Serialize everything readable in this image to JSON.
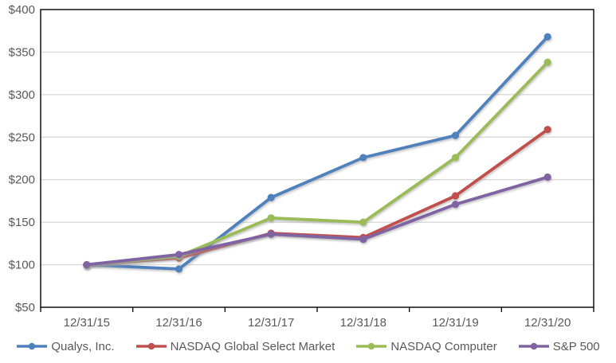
{
  "chart_data": {
    "type": "line",
    "title": "",
    "xlabel": "",
    "ylabel": "",
    "categories": [
      "12/31/15",
      "12/31/16",
      "12/31/17",
      "12/31/18",
      "12/31/19",
      "12/31/20"
    ],
    "series": [
      {
        "name": "Qualys, Inc.",
        "color": "#4F81BD",
        "marker": "circle",
        "values": [
          100,
          95,
          179,
          226,
          252,
          368
        ]
      },
      {
        "name": "NASDAQ Global Select Market",
        "color": "#C0504D",
        "marker": "circle",
        "values": [
          100,
          108,
          137,
          132,
          181,
          259
        ]
      },
      {
        "name": "NASDAQ Computer",
        "color": "#9BBB59",
        "marker": "circle",
        "values": [
          100,
          110,
          155,
          150,
          226,
          338
        ]
      },
      {
        "name": "S&P 500",
        "color": "#8064A2",
        "marker": "circle",
        "values": [
          100,
          112,
          136,
          130,
          171,
          203
        ]
      }
    ],
    "ylim": [
      50,
      400
    ],
    "y_tick_values": [
      50,
      100,
      150,
      200,
      250,
      300,
      350,
      400
    ],
    "y_tick_labels": [
      "$50",
      "$100",
      "$150",
      "$200",
      "$250",
      "$300",
      "$350",
      "$400"
    ],
    "grid": "horizontal",
    "legend_position": "bottom",
    "colors": {
      "gridline": "#D9D9D9",
      "plot_border": "#000000",
      "axis_text": "#595959",
      "background": "#FFFFFF"
    }
  }
}
